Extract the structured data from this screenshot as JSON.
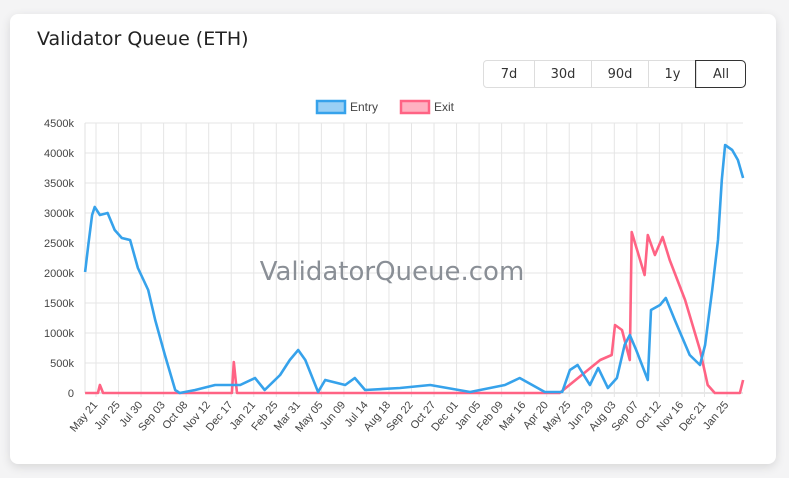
{
  "card": {
    "title": "Validator Queue (ETH)"
  },
  "range_buttons": [
    {
      "label": "7d"
    },
    {
      "label": "30d"
    },
    {
      "label": "90d"
    },
    {
      "label": "1y"
    },
    {
      "label": "All",
      "active": true
    }
  ],
  "watermark": "ValidatorQueue.com",
  "colors": {
    "entry": "#36a2eb",
    "entry_fill": "#9ad0f5",
    "exit": "#ff6384",
    "exit_fill": "#ffb1c1",
    "grid": "#e5e5e5"
  },
  "chart_data": {
    "type": "line",
    "title": "",
    "xlabel": "",
    "ylabel": "",
    "ylim": [
      0,
      4500000
    ],
    "xlim": [
      "2023-05-04",
      "2026-02-19"
    ],
    "grid": true,
    "legend_position": "top",
    "y_ticks": [
      "0",
      "500k",
      "1000k",
      "1500k",
      "2000k",
      "2500k",
      "3000k",
      "3500k",
      "4000k",
      "4500k"
    ],
    "x_tick_dates": [
      "2023-05-21",
      "2023-06-25",
      "2023-07-30",
      "2023-09-03",
      "2023-10-08",
      "2023-11-12",
      "2023-12-17",
      "2024-01-21",
      "2024-02-25",
      "2024-03-31",
      "2024-05-05",
      "2024-06-09",
      "2024-07-14",
      "2024-08-18",
      "2024-09-22",
      "2024-10-27",
      "2024-12-01",
      "2025-01-05",
      "2025-02-09",
      "2025-03-16",
      "2025-04-20",
      "2025-05-25",
      "2025-06-29",
      "2025-08-03",
      "2025-09-07",
      "2025-10-12",
      "2025-11-16",
      "2025-12-21",
      "2026-01-25"
    ],
    "x_tick_labels": [
      "May 21",
      "Jun 25",
      "Jul 30",
      "Sep 03",
      "Oct 08",
      "Nov 12",
      "Dec 17",
      "Jan 21",
      "Feb 25",
      "Mar 31",
      "May 05",
      "Jun 09",
      "Jul 14",
      "Aug 18",
      "Sep 22",
      "Oct 27",
      "Dec 01",
      "Jan 05",
      "Feb 09",
      "Mar 16",
      "Apr 20",
      "May 25",
      "Jun 29",
      "Aug 03",
      "Sep 07",
      "Oct 12",
      "Nov 16",
      "Dec 21",
      "Jan 25"
    ],
    "series": [
      {
        "name": "Entry",
        "points": [
          [
            "2023-05-04",
            2017000
          ],
          [
            "2023-05-09",
            2467000
          ],
          [
            "2023-05-15",
            2967000
          ],
          [
            "2023-05-19",
            3100000
          ],
          [
            "2023-05-27",
            2967000
          ],
          [
            "2023-06-08",
            3000000
          ],
          [
            "2023-06-19",
            2717000
          ],
          [
            "2023-06-30",
            2583000
          ],
          [
            "2023-07-13",
            2550000
          ],
          [
            "2023-07-25",
            2083000
          ],
          [
            "2023-08-10",
            1717000
          ],
          [
            "2023-08-21",
            1217000
          ],
          [
            "2023-09-05",
            633000
          ],
          [
            "2023-09-21",
            50000
          ],
          [
            "2023-09-28",
            0
          ],
          [
            "2023-10-22",
            50000
          ],
          [
            "2023-11-22",
            133000
          ],
          [
            "2023-12-31",
            133000
          ],
          [
            "2024-01-23",
            250000
          ],
          [
            "2024-02-07",
            50000
          ],
          [
            "2024-03-02",
            300000
          ],
          [
            "2024-03-17",
            550000
          ],
          [
            "2024-03-30",
            717000
          ],
          [
            "2024-04-10",
            550000
          ],
          [
            "2024-04-30",
            17000
          ],
          [
            "2024-05-11",
            217000
          ],
          [
            "2024-06-11",
            133000
          ],
          [
            "2024-06-26",
            250000
          ],
          [
            "2024-07-12",
            50000
          ],
          [
            "2024-09-04",
            83000
          ],
          [
            "2024-10-21",
            133000
          ],
          [
            "2024-12-22",
            17000
          ],
          [
            "2025-02-14",
            133000
          ],
          [
            "2025-03-09",
            250000
          ],
          [
            "2025-04-17",
            17000
          ],
          [
            "2025-05-14",
            17000
          ],
          [
            "2025-05-26",
            383000
          ],
          [
            "2025-06-07",
            467000
          ],
          [
            "2025-06-26",
            133000
          ],
          [
            "2025-07-09",
            417000
          ],
          [
            "2025-07-24",
            83000
          ],
          [
            "2025-08-07",
            250000
          ],
          [
            "2025-08-19",
            800000
          ],
          [
            "2025-08-27",
            967000
          ],
          [
            "2025-09-06",
            717000
          ],
          [
            "2025-09-24",
            217000
          ],
          [
            "2025-09-29",
            1383000
          ],
          [
            "2025-10-13",
            1467000
          ],
          [
            "2025-10-22",
            1583000
          ],
          [
            "2025-11-05",
            1217000
          ],
          [
            "2025-11-28",
            633000
          ],
          [
            "2025-12-14",
            467000
          ],
          [
            "2025-12-22",
            800000
          ],
          [
            "2026-01-02",
            1717000
          ],
          [
            "2026-01-11",
            2550000
          ],
          [
            "2026-01-17",
            3550000
          ],
          [
            "2026-01-22",
            4133000
          ],
          [
            "2026-02-02",
            4050000
          ],
          [
            "2026-02-11",
            3883000
          ],
          [
            "2026-02-19",
            3583000
          ]
        ]
      },
      {
        "name": "Exit",
        "points": [
          [
            "2023-05-04",
            0
          ],
          [
            "2023-05-24",
            0
          ],
          [
            "2023-05-27",
            133000
          ],
          [
            "2023-06-01",
            0
          ],
          [
            "2023-12-18",
            0
          ],
          [
            "2023-12-21",
            517000
          ],
          [
            "2023-12-26",
            0
          ],
          [
            "2025-05-10",
            0
          ],
          [
            "2025-07-12",
            550000
          ],
          [
            "2025-07-30",
            633000
          ],
          [
            "2025-08-04",
            1133000
          ],
          [
            "2025-08-15",
            1050000
          ],
          [
            "2025-08-27",
            550000
          ],
          [
            "2025-08-30",
            2683000
          ],
          [
            "2025-09-19",
            1967000
          ],
          [
            "2025-09-24",
            2633000
          ],
          [
            "2025-10-05",
            2300000
          ],
          [
            "2025-10-17",
            2600000
          ],
          [
            "2025-10-28",
            2217000
          ],
          [
            "2025-11-21",
            1550000
          ],
          [
            "2025-12-14",
            717000
          ],
          [
            "2025-12-26",
            133000
          ],
          [
            "2026-01-06",
            0
          ],
          [
            "2026-02-14",
            0
          ],
          [
            "2026-02-19",
            217000
          ]
        ]
      }
    ]
  }
}
